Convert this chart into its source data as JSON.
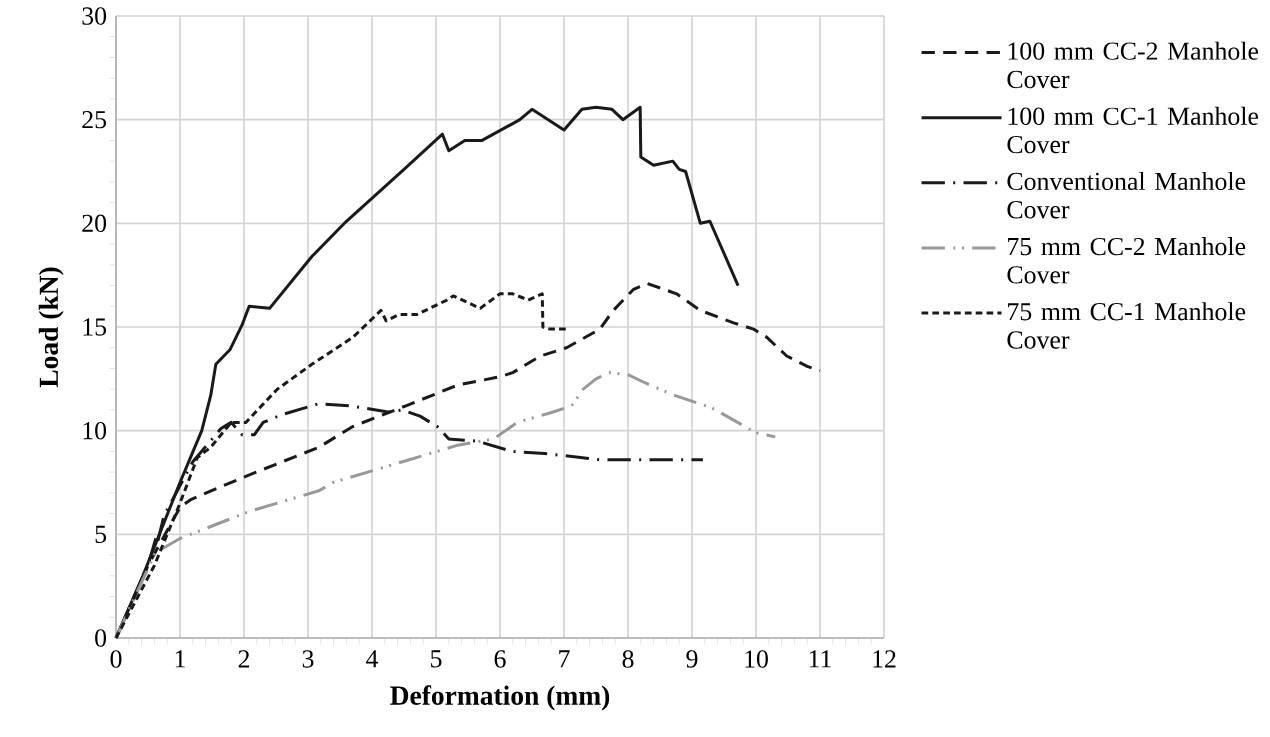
{
  "chart_data": {
    "type": "line",
    "xlabel": "Deformation (mm)",
    "ylabel": "Load (kN)",
    "xlim": [
      0,
      12
    ],
    "ylim": [
      0,
      30
    ],
    "xticks": [
      0,
      1,
      2,
      3,
      4,
      5,
      6,
      7,
      8,
      9,
      10,
      11,
      12
    ],
    "yticks": [
      0,
      5,
      10,
      15,
      20,
      25,
      30
    ],
    "grid": true,
    "legend": "right",
    "marker": "none",
    "series": [
      {
        "name": "100 mm CC-2 Manhole Cover",
        "color": "#1a1a1a",
        "line_style": "dashed",
        "x": [
          0,
          0.5,
          1.0,
          1.16,
          1.64,
          2.19,
          3.17,
          3.7,
          4.53,
          5.34,
          6.0,
          6.2,
          6.63,
          7.04,
          7.56,
          7.77,
          8.08,
          8.3,
          8.76,
          9.13,
          9.65,
          9.96,
          10.17,
          10.48,
          10.8,
          11.0
        ],
        "values": [
          0,
          3.5,
          6.3,
          6.66,
          7.3,
          8.0,
          9.2,
          10.2,
          11.2,
          12.2,
          12.6,
          12.8,
          13.6,
          14.0,
          14.9,
          15.8,
          16.8,
          17.1,
          16.6,
          15.8,
          15.2,
          14.9,
          14.5,
          13.6,
          13.1,
          12.9
        ]
      },
      {
        "name": "100 mm CC-1 Manhole Cover",
        "color": "#1a1a1a",
        "line_style": "solid",
        "x": [
          0,
          0.42,
          1.0,
          1.34,
          1.48,
          1.56,
          1.78,
          1.97,
          2.08,
          2.4,
          3.06,
          3.6,
          4.5,
          5.1,
          5.2,
          5.45,
          5.72,
          6.31,
          6.5,
          7.0,
          7.28,
          7.5,
          7.75,
          7.92,
          8.19,
          8.2,
          8.4,
          8.7,
          8.8,
          8.9,
          9.13,
          9.28,
          9.72
        ],
        "values": [
          0,
          3.0,
          7.5,
          10.0,
          11.7,
          13.2,
          13.9,
          15.1,
          16.0,
          15.9,
          18.4,
          20.1,
          22.6,
          24.3,
          23.5,
          24.0,
          24.0,
          25.0,
          25.5,
          24.5,
          25.5,
          25.6,
          25.5,
          25.0,
          25.6,
          23.2,
          22.8,
          23.0,
          22.6,
          22.5,
          20.0,
          20.1,
          17.0
        ]
      },
      {
        "name": "Conventional Manhole Cover",
        "color": "#1a1a1a",
        "line_style": "dashed",
        "x": [
          0,
          0.5,
          0.64,
          0.64,
          0.75,
          1.2,
          1.64,
          1.8,
          1.97,
          2.16,
          2.3,
          2.62,
          3.17,
          3.66,
          4.25,
          4.47,
          4.75,
          5.02,
          5.2,
          5.64,
          6.19,
          6.7,
          7.56,
          9.17
        ],
        "values": [
          0,
          3.5,
          5.0,
          4.5,
          5.9,
          8.5,
          10.1,
          10.4,
          9.8,
          9.8,
          10.4,
          10.8,
          11.3,
          11.2,
          10.9,
          11.0,
          10.7,
          10.2,
          9.6,
          9.5,
          9.0,
          8.9,
          8.6,
          8.6
        ]
      },
      {
        "name": "75 mm CC-2 Manhole Cover",
        "color": "#999999",
        "line_style": "dashed",
        "x": [
          0,
          0.61,
          1.0,
          2.08,
          3.17,
          3.39,
          4.8,
          5.34,
          5.9,
          6.27,
          6.83,
          7.12,
          7.3,
          7.5,
          7.72,
          8.0,
          8.27,
          8.73,
          9.31,
          10.0,
          10.3
        ],
        "values": [
          0,
          4.1,
          4.8,
          6.1,
          7.1,
          7.5,
          8.8,
          9.3,
          9.6,
          10.4,
          10.9,
          11.2,
          12.0,
          12.5,
          12.8,
          12.7,
          12.3,
          11.7,
          11.1,
          9.9,
          9.7
        ]
      },
      {
        "name": "75 mm CC-1 Manhole Cover",
        "color": "#1a1a1a",
        "line_style": "dotted",
        "x": [
          0,
          0.6,
          1.0,
          1.27,
          1.48,
          1.8,
          2.03,
          2.52,
          3.06,
          3.7,
          4.14,
          4.22,
          4.42,
          4.7,
          5.17,
          5.27,
          5.69,
          6.0,
          6.2,
          6.44,
          6.66,
          6.67,
          6.78,
          7.04
        ],
        "values": [
          0,
          3.5,
          6.5,
          8.7,
          9.2,
          10.4,
          10.4,
          12.0,
          13.2,
          14.5,
          15.8,
          15.3,
          15.6,
          15.6,
          16.3,
          16.5,
          15.9,
          16.6,
          16.6,
          16.3,
          16.6,
          15.0,
          14.9,
          14.9
        ]
      }
    ]
  }
}
